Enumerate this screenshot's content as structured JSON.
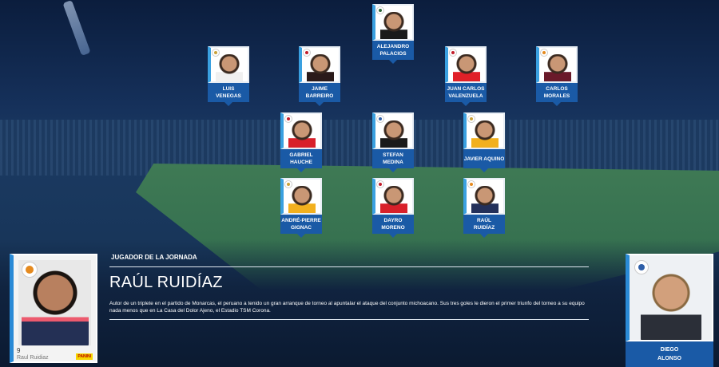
{
  "lineup": [
    {
      "first": "ALEJANDRO",
      "last": "PALACIOS",
      "club_color": "#2d6a3a",
      "shirt": "#1a1a1a"
    },
    {
      "first": "LUIS",
      "last": "VENEGAS",
      "club_color": "#c9a23a",
      "shirt": "#f0f0f0"
    },
    {
      "first": "JAIME",
      "last": "BARREIRO",
      "club_color": "#c21d2b",
      "shirt": "#2a1a1a"
    },
    {
      "first": "JUAN CARLOS",
      "last": "VALENZUELA",
      "club_color": "#c21d2b",
      "shirt": "#e02028"
    },
    {
      "first": "CARLOS",
      "last": "MORALES",
      "club_color": "#e58a1f",
      "shirt": "#6a1a2a"
    },
    {
      "first": "GABRIEL HAUCHE",
      "last": "",
      "club_color": "#c21d2b",
      "shirt": "#d8202a"
    },
    {
      "first": "STEFAN",
      "last": "MEDINA",
      "club_color": "#2f5fa8",
      "shirt": "#1a1a1a"
    },
    {
      "first": "JAVIER AQUINO",
      "last": "",
      "club_color": "#c9a23a",
      "shirt": "#f2b01e"
    },
    {
      "first": "ANDRÉ-PIERRE",
      "last": "GIGNAC",
      "club_color": "#c9a23a",
      "shirt": "#f2b01e"
    },
    {
      "first": "DAYRO MORENO",
      "last": "",
      "club_color": "#c21d2b",
      "shirt": "#d8202a"
    },
    {
      "first": "RAÚL",
      "last": "RUIDÍAZ",
      "club_color": "#e58a1f",
      "shirt": "#23305a"
    }
  ],
  "featured": {
    "kicker": "JUGADOR DE LA JORNADA",
    "name": "RAÚL RUIDÍAZ",
    "description": "Autor de un triplete en el partido de Monarcas, el peruano a tenido un gran arranque de torneo al apuntalar el ataque del conjunto michoacano. Sus tres goles le dieron el primer triunfo del torneo a su equipo nada menos que en La Casa del Dolor Ajeno, el Estadio TSM Corona.",
    "sticker_number": "9",
    "sticker_name": "Raul Ruidiaz",
    "sticker_brand": "PANINI"
  },
  "coach": {
    "first": "DIEGO",
    "last": "ALONSO"
  }
}
